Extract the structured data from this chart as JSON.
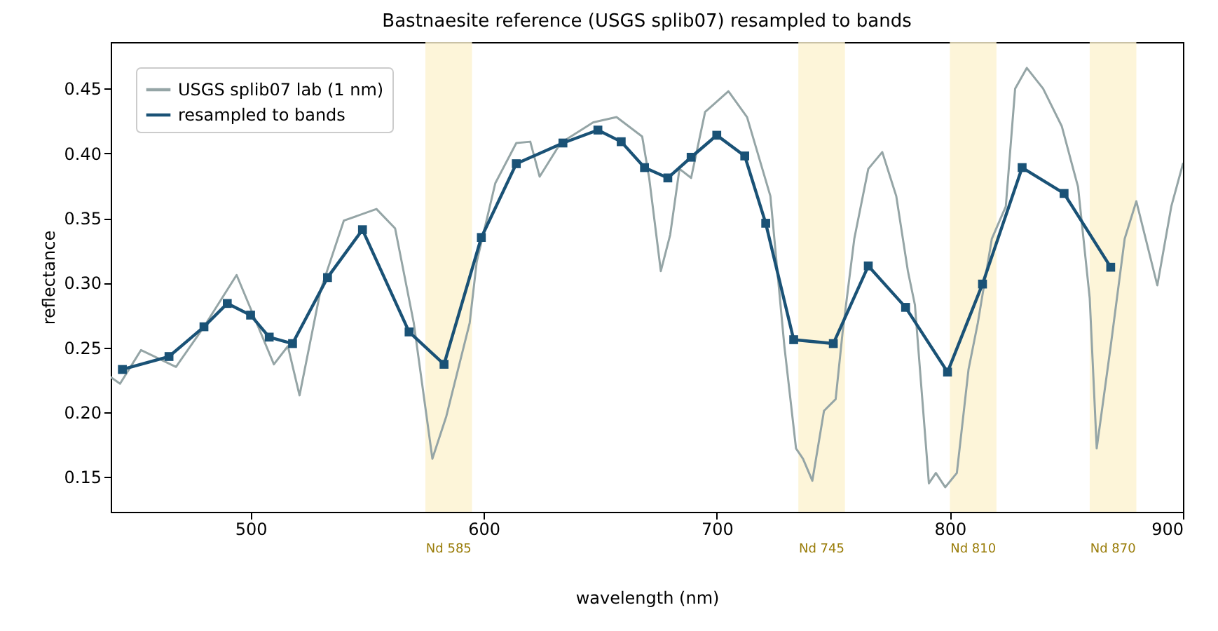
{
  "chart_data": {
    "type": "line",
    "title": "Bastnaesite reference (USGS splib07) resampled to bands",
    "xlabel": "wavelength (nm)",
    "ylabel": "reflectance",
    "xlim": [
      440,
      900
    ],
    "xticks": [
      500,
      600,
      700,
      800,
      900
    ],
    "ylim": [
      0.123,
      0.486
    ],
    "yticks": [
      0.15,
      {
        "value": 0.2,
        "label": "0.20"
      },
      0.25,
      {
        "value": 0.3,
        "label": "0.30"
      },
      0.35,
      {
        "value": 0.4,
        "label": "0.40"
      },
      0.45
    ],
    "grid": false,
    "legend": "top left",
    "line_style": "solid",
    "bands": [
      {
        "axis": "x",
        "from": 575,
        "to": 595,
        "label": "Nd 585",
        "color": "#fcf3cf"
      },
      {
        "axis": "x",
        "from": 735,
        "to": 755,
        "label": "Nd 745",
        "color": "#fcf3cf"
      },
      {
        "axis": "x",
        "from": 800,
        "to": 820,
        "label": "Nd 810",
        "color": "#fcf3cf"
      },
      {
        "axis": "x",
        "from": 860,
        "to": 880,
        "label": "Nd 870",
        "color": "#fcf3cf"
      }
    ],
    "series": [
      {
        "name": "USGS splib07 lab (1 nm)",
        "color": "#95a5a6",
        "marker": "none",
        "x": [
          440,
          444,
          453,
          468,
          480,
          494,
          510,
          516,
          521,
          530,
          540,
          554,
          562,
          570,
          578,
          584,
          594,
          597,
          605,
          614,
          620,
          624,
          633,
          647,
          657,
          668,
          671,
          676,
          680,
          684,
          689,
          695,
          705,
          713,
          723,
          729,
          734,
          737,
          741,
          746,
          751,
          754,
          759,
          765,
          771,
          777,
          782,
          785,
          791,
          794,
          798,
          803,
          808,
          812,
          818,
          824,
          828,
          833,
          840,
          848,
          855,
          860,
          863,
          869,
          875,
          880,
          889,
          895,
          900
        ],
        "values": [
          0.227,
          0.222,
          0.248,
          0.235,
          0.266,
          0.306,
          0.237,
          0.251,
          0.213,
          0.294,
          0.348,
          0.357,
          0.342,
          0.269,
          0.164,
          0.197,
          0.269,
          0.316,
          0.377,
          0.408,
          0.409,
          0.382,
          0.408,
          0.424,
          0.428,
          0.413,
          0.381,
          0.309,
          0.337,
          0.388,
          0.381,
          0.432,
          0.448,
          0.428,
          0.367,
          0.251,
          0.172,
          0.164,
          0.147,
          0.201,
          0.21,
          0.262,
          0.334,
          0.388,
          0.401,
          0.367,
          0.309,
          0.283,
          0.145,
          0.153,
          0.142,
          0.153,
          0.233,
          0.269,
          0.334,
          0.359,
          0.45,
          0.466,
          0.45,
          0.421,
          0.374,
          0.288,
          0.172,
          0.251,
          0.334,
          0.363,
          0.298,
          0.359,
          0.392
        ]
      },
      {
        "name": "resampled to bands",
        "color": "#1a5276",
        "marker": "square",
        "x": [
          445,
          465,
          480,
          490,
          500,
          508,
          518,
          533,
          548,
          568,
          583,
          599,
          614,
          634,
          649,
          659,
          669,
          679,
          689,
          700,
          712,
          721,
          733,
          750,
          765,
          781,
          799,
          814,
          831,
          849,
          869
        ],
        "values": [
          0.233,
          0.243,
          0.266,
          0.284,
          0.275,
          0.258,
          0.253,
          0.304,
          0.341,
          0.262,
          0.237,
          0.335,
          0.392,
          0.408,
          0.418,
          0.409,
          0.389,
          0.381,
          0.397,
          0.414,
          0.398,
          0.346,
          0.256,
          0.253,
          0.313,
          0.281,
          0.231,
          0.299,
          0.389,
          0.369,
          0.312
        ]
      }
    ]
  }
}
